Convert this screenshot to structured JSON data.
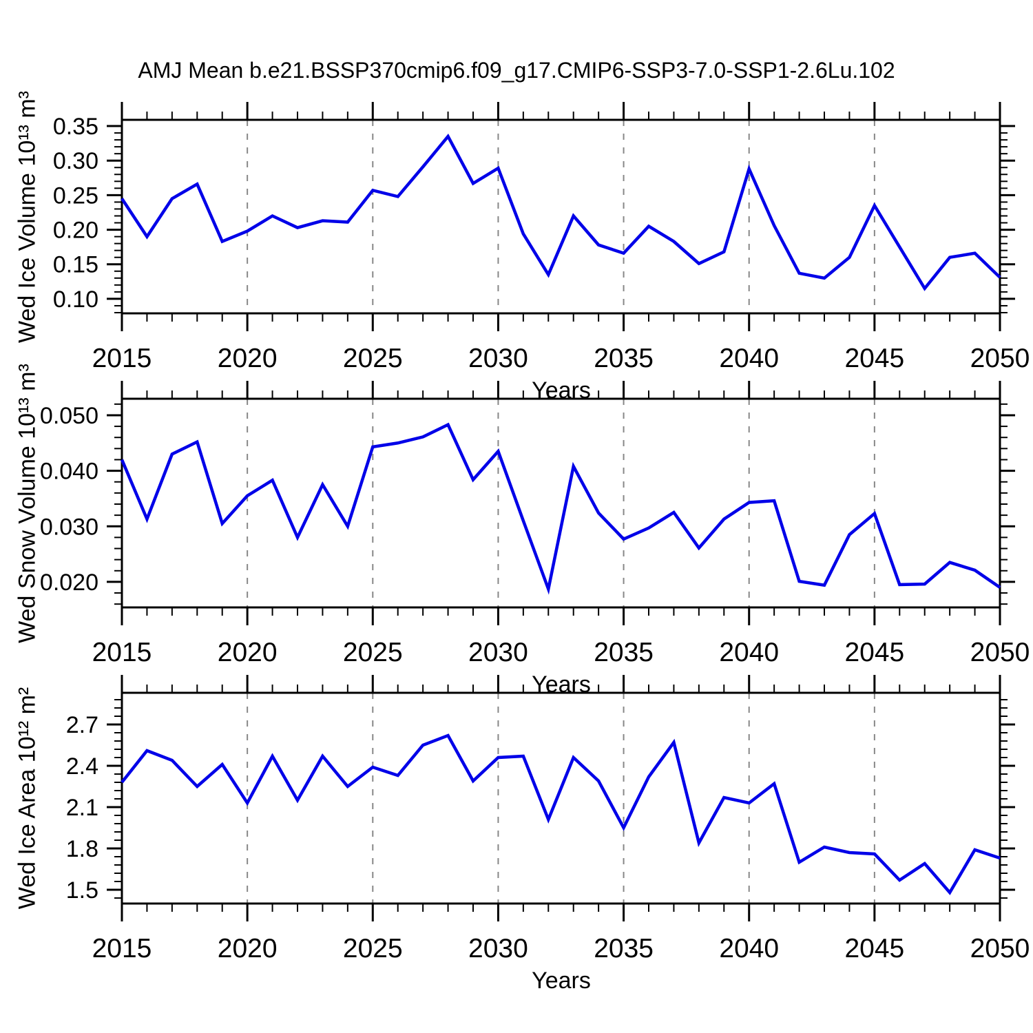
{
  "title": "AMJ Mean b.e21.BSSP370cmip6.f09_g17.CMIP6-SSP3-7.0-SSP1-2.6Lu.102",
  "style": {
    "line_color": "#0000e8",
    "grid_color": "#878787",
    "frame_color": "#000000"
  },
  "chart_data": [
    {
      "type": "line",
      "name": "wed-ice-volume",
      "ylabel": "Wed Ice Volume 10¹³ m³",
      "xlabel": "Years",
      "xlim": [
        2015,
        2050
      ],
      "ylim": [
        0.079,
        0.359
      ],
      "grid": "vertical-dashed",
      "legend": "none",
      "x": [
        2015,
        2016,
        2017,
        2018,
        2019,
        2020,
        2021,
        2022,
        2023,
        2024,
        2025,
        2026,
        2027,
        2028,
        2029,
        2030,
        2031,
        2032,
        2033,
        2034,
        2035,
        2036,
        2037,
        2038,
        2039,
        2040,
        2041,
        2042,
        2043,
        2044,
        2045,
        2046,
        2047,
        2048,
        2049,
        2050
      ],
      "values": [
        0.245,
        0.19,
        0.245,
        0.266,
        0.183,
        0.198,
        0.22,
        0.203,
        0.213,
        0.211,
        0.257,
        0.248,
        0.291,
        0.335,
        0.267,
        0.289,
        0.194,
        0.135,
        0.22,
        0.178,
        0.166,
        0.205,
        0.183,
        0.151,
        0.168,
        0.288,
        0.206,
        0.137,
        0.13,
        0.16,
        0.235,
        0.175,
        0.115,
        0.16,
        0.166,
        0.131
      ],
      "yticks_major": [
        0.1,
        0.15,
        0.2,
        0.25,
        0.3,
        0.35
      ],
      "ytick_labels": [
        "0.10",
        "0.15",
        "0.20",
        "0.25",
        "0.30",
        "0.35"
      ],
      "yminor_step": 0.01,
      "xticks_major": [
        2015,
        2020,
        2025,
        2030,
        2035,
        2040,
        2045,
        2050
      ],
      "xtick_labels": [
        "2015",
        "2020",
        "2025",
        "2030",
        "2035",
        "2040",
        "2045",
        "2050"
      ],
      "xminor_step": 1,
      "grid_x": [
        2020,
        2025,
        2030,
        2035,
        2040,
        2045
      ]
    },
    {
      "type": "line",
      "name": "wed-snow-volume",
      "ylabel": "Wed Snow Volume 10¹³ m³",
      "xlabel": "Years",
      "xlim": [
        2015,
        2050
      ],
      "ylim": [
        0.0154,
        0.05297
      ],
      "grid": "vertical-dashed",
      "legend": "none",
      "x": [
        2015,
        2016,
        2017,
        2018,
        2019,
        2020,
        2021,
        2022,
        2023,
        2024,
        2025,
        2026,
        2027,
        2028,
        2029,
        2030,
        2031,
        2032,
        2033,
        2034,
        2035,
        2036,
        2037,
        2038,
        2039,
        2040,
        2041,
        2042,
        2043,
        2044,
        2045,
        2046,
        2047,
        2048,
        2049,
        2050
      ],
      "values": [
        0.042,
        0.0313,
        0.043,
        0.0452,
        0.0305,
        0.0355,
        0.0383,
        0.028,
        0.0375,
        0.03,
        0.0443,
        0.045,
        0.0461,
        0.0483,
        0.0384,
        0.0435,
        0.031,
        0.0187,
        0.0408,
        0.0324,
        0.0277,
        0.0297,
        0.0325,
        0.0261,
        0.0313,
        0.0343,
        0.0346,
        0.0201,
        0.0194,
        0.0285,
        0.0323,
        0.0195,
        0.0196,
        0.0235,
        0.0221,
        0.019
      ],
      "yticks_major": [
        0.02,
        0.03,
        0.04,
        0.05
      ],
      "ytick_labels": [
        "0.020",
        "0.030",
        "0.040",
        "0.050"
      ],
      "yminor_step": 0.002,
      "xticks_major": [
        2015,
        2020,
        2025,
        2030,
        2035,
        2040,
        2045,
        2050
      ],
      "xtick_labels": [
        "2015",
        "2020",
        "2025",
        "2030",
        "2035",
        "2040",
        "2045",
        "2050"
      ],
      "xminor_step": 1,
      "grid_x": [
        2020,
        2025,
        2030,
        2035,
        2040,
        2045
      ]
    },
    {
      "type": "line",
      "name": "wed-ice-area",
      "ylabel": "Wed Ice Area 10¹² m²",
      "xlabel": "Years",
      "xlim": [
        2015,
        2050
      ],
      "ylim": [
        1.4,
        2.93
      ],
      "grid": "vertical-dashed",
      "legend": "none",
      "x": [
        2015,
        2016,
        2017,
        2018,
        2019,
        2020,
        2021,
        2022,
        2023,
        2024,
        2025,
        2026,
        2027,
        2028,
        2029,
        2030,
        2031,
        2032,
        2033,
        2034,
        2035,
        2036,
        2037,
        2038,
        2039,
        2040,
        2041,
        2042,
        2043,
        2044,
        2045,
        2046,
        2047,
        2048,
        2049,
        2050
      ],
      "values": [
        2.28,
        2.51,
        2.44,
        2.25,
        2.41,
        2.13,
        2.47,
        2.15,
        2.47,
        2.25,
        2.39,
        2.33,
        2.55,
        2.62,
        2.29,
        2.46,
        2.47,
        2.01,
        2.46,
        2.29,
        1.95,
        2.32,
        2.57,
        1.84,
        2.17,
        2.13,
        2.27,
        1.7,
        1.81,
        1.77,
        1.76,
        1.57,
        1.69,
        1.48,
        1.79,
        1.73
      ],
      "yticks_major": [
        1.5,
        1.8,
        2.1,
        2.4,
        2.7
      ],
      "ytick_labels": [
        "1.5",
        "1.8",
        "2.1",
        "2.4",
        "2.7"
      ],
      "yminor_step": 0.06,
      "xticks_major": [
        2015,
        2020,
        2025,
        2030,
        2035,
        2040,
        2045,
        2050
      ],
      "xtick_labels": [
        "2015",
        "2020",
        "2025",
        "2030",
        "2035",
        "2040",
        "2045",
        "2050"
      ],
      "xminor_step": 1,
      "grid_x": [
        2020,
        2025,
        2030,
        2035,
        2040,
        2045
      ]
    }
  ]
}
